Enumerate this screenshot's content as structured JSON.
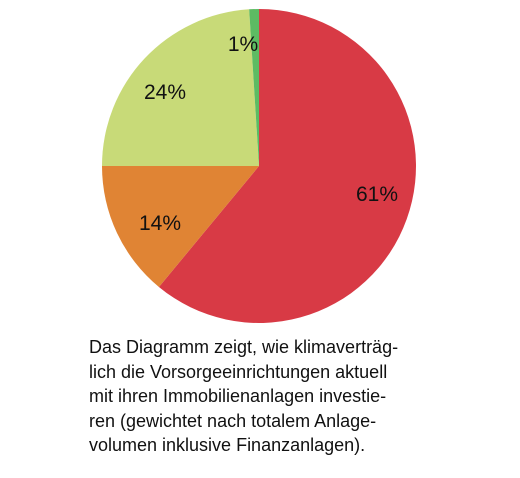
{
  "chart_data": {
    "type": "pie",
    "title": "",
    "start": "top",
    "direction": "clockwise",
    "slices": [
      {
        "label": "61%",
        "value": 61,
        "color": "#d83a45"
      },
      {
        "label": "14%",
        "value": 14,
        "color": "#e08434"
      },
      {
        "label": "24%",
        "value": 24,
        "color": "#c8da78"
      },
      {
        "label": "1%",
        "value": 1,
        "color": "#5dbb63"
      }
    ]
  },
  "caption": {
    "lines": [
      "Das Diagramm zeigt, wie klimaverträg-",
      "lich die Vorsorgeeinrichtungen aktuell",
      "mit ihren Immobilienanlagen investie-",
      "ren (gewichtet nach totalem Anlage-",
      "volumen inklusive Finanzanlagen)."
    ]
  }
}
